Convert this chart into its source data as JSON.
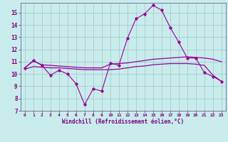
{
  "xlabel": "Windchill (Refroidissement éolien,°C)",
  "bg_color": "#c8ecec",
  "line_color": "#990099",
  "grid_color": "#aacccc",
  "text_color": "#800080",
  "ylim": [
    7,
    15.8
  ],
  "xlim": [
    -0.5,
    23.5
  ],
  "yticks": [
    7,
    8,
    9,
    10,
    11,
    12,
    13,
    14,
    15
  ],
  "xticks": [
    0,
    1,
    2,
    3,
    4,
    5,
    6,
    7,
    8,
    9,
    10,
    11,
    12,
    13,
    14,
    15,
    16,
    17,
    18,
    19,
    20,
    21,
    22,
    23
  ],
  "hours": [
    0,
    1,
    2,
    3,
    4,
    5,
    6,
    7,
    8,
    9,
    10,
    11,
    12,
    13,
    14,
    15,
    16,
    17,
    18,
    19,
    20,
    21,
    22,
    23
  ],
  "curve1": [
    10.5,
    11.1,
    10.7,
    9.9,
    10.3,
    10.0,
    9.2,
    7.5,
    8.8,
    8.6,
    10.9,
    10.7,
    12.9,
    14.5,
    14.9,
    15.6,
    15.2,
    13.8,
    12.6,
    11.3,
    11.3,
    10.1,
    9.8,
    9.4
  ],
  "curve2": [
    10.5,
    11.05,
    10.75,
    10.7,
    10.65,
    10.6,
    10.55,
    10.5,
    10.5,
    10.5,
    10.8,
    10.85,
    10.9,
    11.0,
    11.1,
    11.2,
    11.25,
    11.3,
    11.35,
    11.4,
    11.35,
    11.3,
    11.2,
    11.0
  ],
  "curve3": [
    10.4,
    10.6,
    10.55,
    10.5,
    10.5,
    10.45,
    10.4,
    10.35,
    10.35,
    10.35,
    10.35,
    10.4,
    10.5,
    10.6,
    10.65,
    10.75,
    10.8,
    10.85,
    10.85,
    10.85,
    10.8,
    10.7,
    9.9,
    9.4
  ]
}
